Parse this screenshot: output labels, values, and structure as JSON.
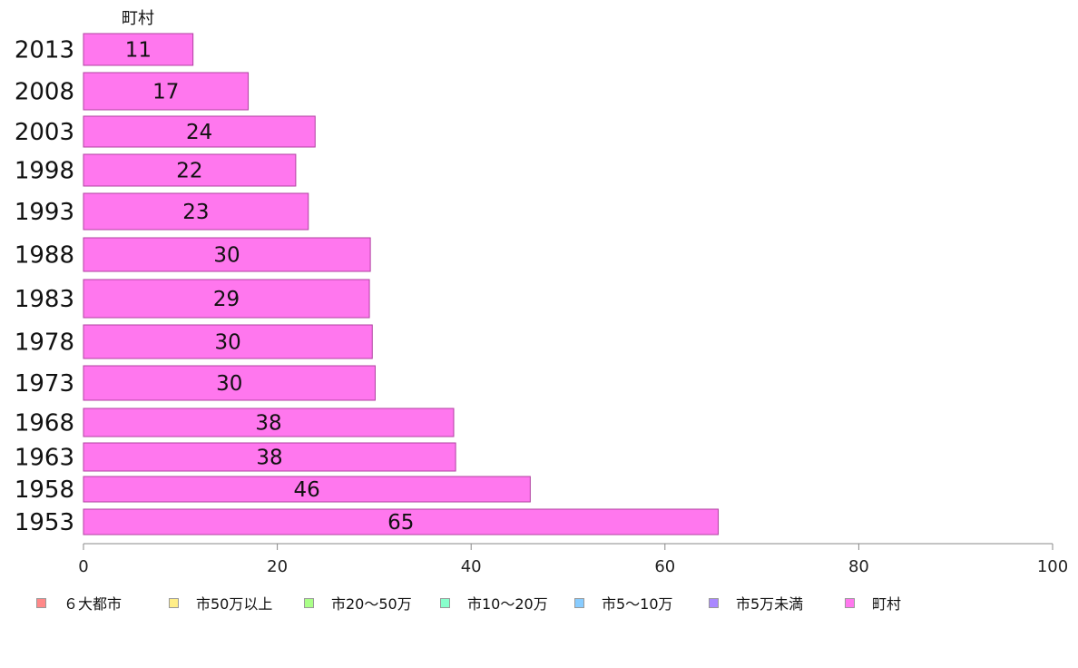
{
  "chart_data": {
    "type": "bar",
    "orientation": "horizontal",
    "series_title": "町村",
    "categories": [
      "2013",
      "2008",
      "2003",
      "1998",
      "1993",
      "1988",
      "1983",
      "1978",
      "1973",
      "1968",
      "1963",
      "1958",
      "1953"
    ],
    "values": [
      11.3,
      17.0,
      23.9,
      21.9,
      23.2,
      29.6,
      29.5,
      29.8,
      30.1,
      38.2,
      38.4,
      46.1,
      65.5
    ],
    "value_labels": [
      "11",
      "17",
      "24",
      "22",
      "23",
      "30",
      "29",
      "30",
      "30",
      "38",
      "38",
      "46",
      "65"
    ],
    "xlim": [
      0,
      100
    ],
    "xticks": [
      "0",
      "20",
      "40",
      "60",
      "80",
      "100"
    ],
    "bar_color": "#ff77ee",
    "legend": [
      {
        "label": "６大都市",
        "color": "#ff8888"
      },
      {
        "label": "市50万以上",
        "color": "#ffee88"
      },
      {
        "label": "市20〜50万",
        "color": "#aaff88"
      },
      {
        "label": "市10〜20万",
        "color": "#88ffcc"
      },
      {
        "label": "市5〜10万",
        "color": "#88ccff"
      },
      {
        "label": "市5万未満",
        "color": "#aa88ff"
      },
      {
        "label": "町村",
        "color": "#ff77ee"
      }
    ],
    "legend_position": "bottom",
    "grid": false
  }
}
